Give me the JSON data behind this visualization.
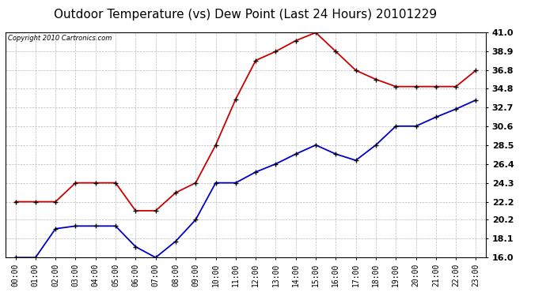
{
  "title": "Outdoor Temperature (vs) Dew Point (Last 24 Hours) 20101229",
  "copyright": "Copyright 2010 Cartronics.com",
  "x_labels": [
    "00:00",
    "01:00",
    "02:00",
    "03:00",
    "04:00",
    "05:00",
    "06:00",
    "07:00",
    "08:00",
    "09:00",
    "10:00",
    "11:00",
    "12:00",
    "13:00",
    "14:00",
    "15:00",
    "16:00",
    "17:00",
    "18:00",
    "19:00",
    "20:00",
    "21:00",
    "22:00",
    "23:00"
  ],
  "temp_data": [
    22.2,
    22.2,
    22.2,
    24.3,
    24.3,
    24.3,
    21.2,
    21.2,
    23.2,
    24.3,
    28.5,
    33.6,
    37.9,
    38.9,
    40.1,
    41.0,
    38.9,
    36.8,
    35.8,
    35.0,
    35.0,
    35.0,
    35.0,
    36.8
  ],
  "dew_data": [
    16.0,
    16.0,
    19.2,
    19.5,
    19.5,
    19.5,
    17.2,
    16.0,
    17.8,
    20.2,
    24.3,
    24.3,
    25.5,
    26.4,
    27.5,
    28.5,
    27.5,
    26.8,
    28.5,
    30.6,
    30.6,
    31.6,
    32.5,
    33.5
  ],
  "temp_color": "#cc0000",
  "dew_color": "#0000cc",
  "bg_color": "#ffffff",
  "plot_bg_color": "#ffffff",
  "grid_color": "#aaaaaa",
  "y_min": 16.0,
  "y_max": 41.0,
  "y_ticks": [
    16.0,
    18.1,
    20.2,
    22.2,
    24.3,
    26.4,
    28.5,
    30.6,
    32.7,
    34.8,
    36.8,
    38.9,
    41.0
  ],
  "title_fontsize": 11,
  "tick_fontsize": 7,
  "ytick_fontsize": 8,
  "copyright_fontsize": 6,
  "linewidth": 1.3,
  "markersize": 3
}
